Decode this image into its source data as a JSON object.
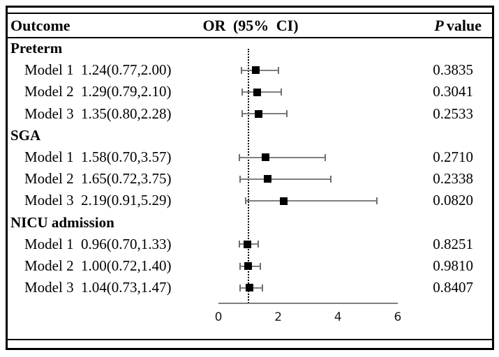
{
  "header": {
    "outcome": "Outcome",
    "or_ci": "OR (95% CI)",
    "p_italic": "P",
    "p_rest": "value"
  },
  "chart_data": {
    "type": "scatter",
    "subtype": "forest-plot",
    "title": "",
    "xlabel": "",
    "xlim": [
      0,
      6
    ],
    "xticks": [
      0,
      2,
      4,
      6
    ],
    "reference_line_x": 1,
    "legend": "none",
    "grid": false,
    "sections": [
      {
        "name": "Preterm",
        "rows": [
          {
            "model": "Model 1",
            "or": 1.24,
            "ci_low": 0.77,
            "ci_high": 2.0,
            "or_text": "1.24(0.77,2.00)",
            "p_value": "0.3835"
          },
          {
            "model": "Model 2",
            "or": 1.29,
            "ci_low": 0.79,
            "ci_high": 2.1,
            "or_text": "1.29(0.79,2.10)",
            "p_value": "0.3041"
          },
          {
            "model": "Model 3",
            "or": 1.35,
            "ci_low": 0.8,
            "ci_high": 2.28,
            "or_text": "1.35(0.80,2.28)",
            "p_value": "0.2533"
          }
        ]
      },
      {
        "name": "SGA",
        "rows": [
          {
            "model": "Model 1",
            "or": 1.58,
            "ci_low": 0.7,
            "ci_high": 3.57,
            "or_text": "1.58(0.70,3.57)",
            "p_value": "0.2710"
          },
          {
            "model": "Model 2",
            "or": 1.65,
            "ci_low": 0.72,
            "ci_high": 3.75,
            "or_text": "1.65(0.72,3.75)",
            "p_value": "0.2338"
          },
          {
            "model": "Model 3",
            "or": 2.19,
            "ci_low": 0.91,
            "ci_high": 5.29,
            "or_text": "2.19(0.91,5.29)",
            "p_value": "0.0820"
          }
        ]
      },
      {
        "name": "NICU admission",
        "rows": [
          {
            "model": "Model 1",
            "or": 0.96,
            "ci_low": 0.7,
            "ci_high": 1.33,
            "or_text": "0.96(0.70,1.33)",
            "p_value": "0.8251"
          },
          {
            "model": "Model 2",
            "or": 1.0,
            "ci_low": 0.72,
            "ci_high": 1.4,
            "or_text": "1.00(0.72,1.40)",
            "p_value": "0.9810"
          },
          {
            "model": "Model 3",
            "or": 1.04,
            "ci_low": 0.73,
            "ci_high": 1.47,
            "or_text": "1.04(0.73,1.47)",
            "p_value": "0.8407"
          }
        ]
      }
    ],
    "colors": {
      "marker": "#000000",
      "error_bar": "#7f7f7f",
      "error_bar_cap": "#6e6e6e",
      "axis_line": "#7f7f7f",
      "reference_line": "#000000",
      "text": "#000000",
      "tick_text": "#1a1a1a",
      "border": "#000000",
      "background": "#ffffff"
    }
  }
}
